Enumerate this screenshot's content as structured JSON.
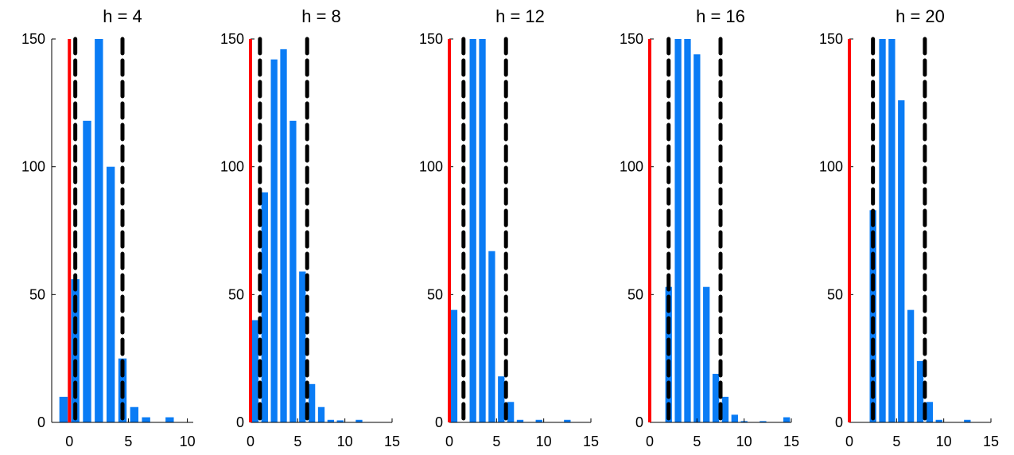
{
  "chart_data": [
    {
      "type": "bar",
      "title": "h = 4",
      "xlim": [
        -1.5,
        10.5
      ],
      "ylim": [
        0,
        150
      ],
      "xticks": [
        0,
        5,
        10
      ],
      "yticks": [
        0,
        50,
        100,
        150
      ],
      "bar_width": 0.7,
      "x": [
        -0.5,
        0.5,
        1.5,
        2.5,
        3.5,
        4.5,
        5.5,
        6.5,
        8.5
      ],
      "values": [
        10,
        56,
        118,
        150,
        100,
        25,
        6,
        2,
        2
      ],
      "reference_line": 0,
      "dashed_lines": [
        0.5,
        4.5
      ]
    },
    {
      "type": "bar",
      "title": "h = 8",
      "xlim": [
        0,
        15
      ],
      "ylim": [
        0,
        150
      ],
      "xticks": [
        0,
        5,
        10,
        15
      ],
      "yticks": [
        0,
        50,
        100,
        150
      ],
      "bar_width": 0.7,
      "x": [
        0.5,
        1.5,
        2.5,
        3.5,
        4.5,
        5.5,
        6.5,
        7.5,
        8.5,
        9.5,
        11.5
      ],
      "values": [
        40,
        90,
        142,
        146,
        118,
        59,
        15,
        6,
        1,
        0.8,
        1
      ],
      "reference_line": 0,
      "dashed_lines": [
        1,
        6
      ]
    },
    {
      "type": "bar",
      "title": "h = 12",
      "xlim": [
        0,
        15
      ],
      "ylim": [
        0,
        150
      ],
      "xticks": [
        0,
        5,
        10,
        15
      ],
      "yticks": [
        0,
        50,
        100,
        150
      ],
      "bar_width": 0.7,
      "x": [
        0.5,
        2.5,
        3.5,
        4.5,
        5.5,
        6.5,
        7.5,
        9.5,
        12.5
      ],
      "values": [
        44,
        150,
        150,
        67,
        18,
        8,
        1,
        1,
        1
      ],
      "reference_line": 0,
      "dashed_lines": [
        1.5,
        6
      ]
    },
    {
      "type": "bar",
      "title": "h = 16",
      "xlim": [
        0,
        15
      ],
      "ylim": [
        0,
        150
      ],
      "xticks": [
        0,
        5,
        10,
        15
      ],
      "yticks": [
        0,
        50,
        100,
        150
      ],
      "bar_width": 0.7,
      "x": [
        2,
        3,
        4,
        5,
        6,
        7,
        8,
        9,
        10,
        12,
        14.5
      ],
      "values": [
        53,
        150,
        150,
        144,
        53,
        19,
        10,
        3,
        0.5,
        0.5,
        2
      ],
      "reference_line": 0,
      "dashed_lines": [
        2,
        7.5
      ]
    },
    {
      "type": "bar",
      "title": "h = 20",
      "xlim": [
        0,
        15
      ],
      "ylim": [
        0,
        150
      ],
      "xticks": [
        0,
        5,
        10,
        15
      ],
      "yticks": [
        0,
        50,
        100,
        150
      ],
      "bar_width": 0.7,
      "x": [
        2.5,
        3.5,
        4.5,
        5.5,
        6.5,
        7.5,
        8.5,
        9.5,
        12.5
      ],
      "values": [
        83,
        150,
        150,
        126,
        44,
        24,
        8,
        1,
        1
      ],
      "reference_line": 0,
      "dashed_lines": [
        2.5,
        8
      ]
    }
  ],
  "colors": {
    "bar": "#0a7cf5",
    "reference_line": "#ff0000",
    "dashed_line": "#000000",
    "axis": "#000000"
  }
}
